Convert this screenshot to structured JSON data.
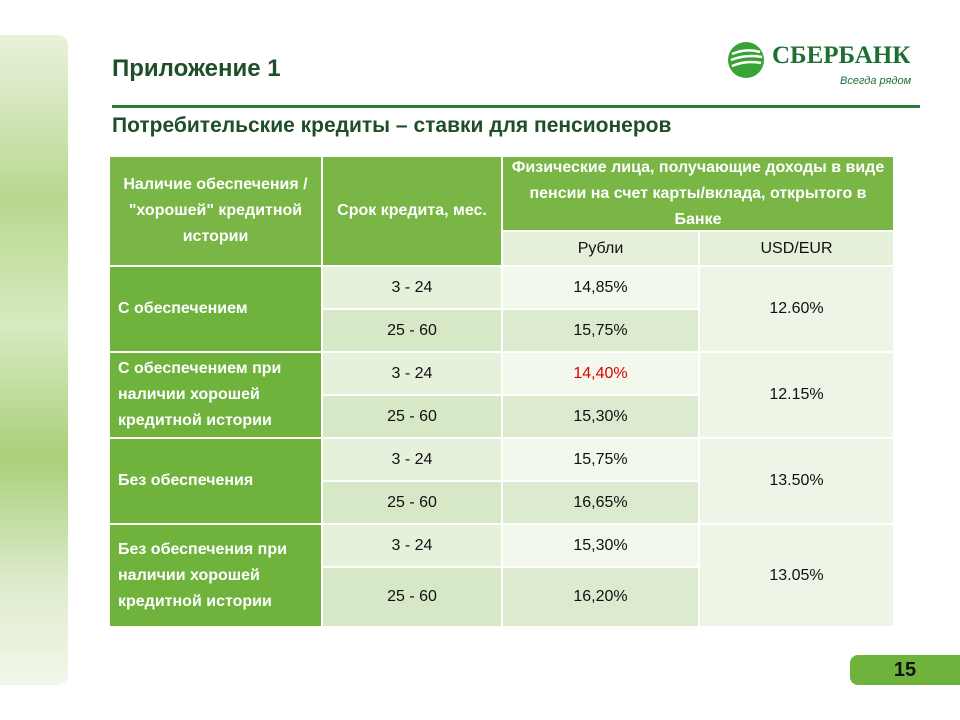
{
  "header": {
    "title": "Приложение 1",
    "subtitle": "Потребительские кредиты – ставки для пенсионеров"
  },
  "logo": {
    "name": "СБЕРБАНК",
    "slogan": "Всегда рядом"
  },
  "table": {
    "header": {
      "security": "Наличие обеспечения / \"хорошей\" кредитной истории",
      "term": "Срок кредита, мес.",
      "income": "Физические лица, получающие доходы в виде пенсии на счет карты/вклада, открытого в Банке",
      "rub": "Рубли",
      "usd": "USD/EUR"
    },
    "groups": [
      {
        "label": "С обеспечением",
        "usd": "12.60%",
        "rows": [
          {
            "term": "3 - 24",
            "rub": "14,85%"
          },
          {
            "term": "25 - 60",
            "rub": "15,75%"
          }
        ]
      },
      {
        "label": "С обеспечением  при наличии хорошей кредитной истории",
        "usd": "12.15%",
        "rows": [
          {
            "term": "3 - 24",
            "rub": "14,40%",
            "rub_color": "#e00000"
          },
          {
            "term": "25 - 60",
            "rub": "15,30%"
          }
        ]
      },
      {
        "label": "Без обеспечения",
        "usd": "13.50%",
        "rows": [
          {
            "term": "3 - 24",
            "rub": "15,75%"
          },
          {
            "term": "25 - 60",
            "rub": "16,65%"
          }
        ]
      },
      {
        "label": "Без обеспечения при наличии хорошей кредитной истории",
        "usd": "13.05%",
        "rows": [
          {
            "term": "3 - 24",
            "rub": "15,30%"
          },
          {
            "term": "25 - 60",
            "rub": "16,20%"
          }
        ]
      }
    ]
  },
  "page_number": "15"
}
